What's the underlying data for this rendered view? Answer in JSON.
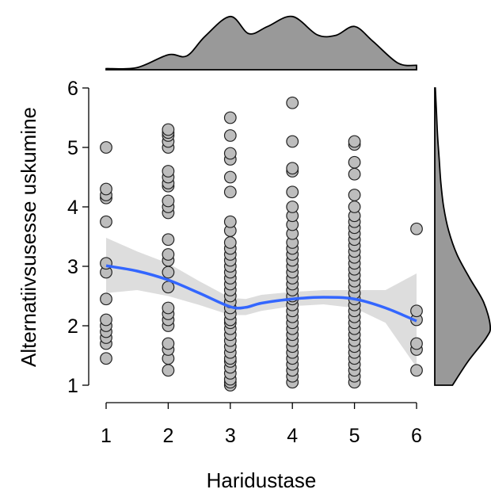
{
  "chart_data": {
    "type": "scatter",
    "title": "",
    "xlabel": "Haridustase",
    "ylabel": "Alternatiivsusesse uskumine",
    "xlim": [
      1,
      6
    ],
    "ylim": [
      1,
      6
    ],
    "xticks": [
      "1",
      "2",
      "3",
      "4",
      "5",
      "6"
    ],
    "yticks": [
      "1",
      "2",
      "3",
      "4",
      "5",
      "6"
    ],
    "grid": false,
    "marginal_top": "density of Haridustase",
    "marginal_right": "density of Alternatiivsusesse uskumine",
    "colors": {
      "points_fill": "#bdbdbd",
      "points_stroke": "#222222",
      "smooth_line": "#3366ff",
      "confidence_band": "#d9d9d9",
      "density_fill": "#999999"
    },
    "points": {
      "1": [
        1.45,
        1.7,
        1.8,
        1.9,
        2.0,
        2.1,
        2.45,
        2.9,
        3.05,
        3.75,
        4.15,
        4.2,
        4.3,
        5.0
      ],
      "2": [
        1.25,
        1.45,
        1.6,
        1.7,
        2.0,
        2.1,
        2.2,
        2.3,
        2.65,
        2.9,
        3.1,
        3.2,
        3.45,
        3.9,
        4.0,
        4.1,
        4.35,
        4.4,
        4.5,
        4.6,
        5.0,
        5.1,
        5.2,
        5.25,
        5.3
      ],
      "3": [
        1.0,
        1.05,
        1.1,
        1.2,
        1.3,
        1.4,
        1.45,
        1.55,
        1.65,
        1.75,
        1.85,
        1.95,
        2.05,
        2.1,
        2.2,
        2.3,
        2.4,
        2.5,
        2.6,
        2.7,
        2.8,
        2.9,
        3.0,
        3.1,
        3.2,
        3.3,
        3.4,
        3.6,
        3.75,
        4.25,
        4.5,
        4.8,
        4.9,
        5.2,
        5.5
      ],
      "4": [
        1.05,
        1.15,
        1.25,
        1.35,
        1.45,
        1.55,
        1.65,
        1.75,
        1.85,
        1.95,
        2.05,
        2.15,
        2.25,
        2.35,
        2.45,
        2.5,
        2.6,
        2.7,
        2.8,
        2.9,
        3.0,
        3.1,
        3.2,
        3.3,
        3.4,
        3.55,
        3.7,
        3.85,
        4.0,
        4.25,
        4.6,
        4.65,
        5.1,
        5.75
      ],
      "5": [
        1.05,
        1.15,
        1.25,
        1.35,
        1.45,
        1.55,
        1.65,
        1.75,
        1.85,
        1.95,
        2.05,
        2.15,
        2.25,
        2.35,
        2.45,
        2.55,
        2.65,
        2.75,
        2.85,
        2.95,
        3.05,
        3.15,
        3.25,
        3.35,
        3.45,
        3.55,
        3.65,
        3.75,
        3.85,
        4.0,
        4.2,
        4.55,
        4.75,
        5.05,
        5.1
      ],
      "6": [
        1.25,
        1.6,
        1.7,
        2.1,
        2.25,
        3.63
      ]
    },
    "smooth": {
      "x": [
        1.0,
        1.5,
        2.0,
        2.5,
        3.0,
        3.25,
        3.5,
        4.0,
        4.5,
        5.0,
        5.5,
        6.0
      ],
      "y": [
        3.01,
        2.92,
        2.77,
        2.55,
        2.32,
        2.31,
        2.38,
        2.45,
        2.48,
        2.45,
        2.3,
        2.08
      ],
      "lower": [
        2.55,
        2.6,
        2.5,
        2.35,
        2.18,
        2.18,
        2.25,
        2.33,
        2.36,
        2.3,
        2.05,
        1.3
      ],
      "upper": [
        3.48,
        3.25,
        3.05,
        2.75,
        2.47,
        2.45,
        2.52,
        2.57,
        2.6,
        2.6,
        2.6,
        2.88
      ]
    },
    "density_x": {
      "x": [
        1.0,
        1.5,
        2.0,
        2.3,
        2.6,
        3.0,
        3.3,
        3.6,
        4.0,
        4.4,
        4.7,
        5.0,
        5.3,
        5.7,
        6.0
      ],
      "d": [
        0.02,
        0.04,
        0.27,
        0.25,
        0.61,
        0.96,
        0.65,
        0.78,
        0.96,
        0.63,
        0.62,
        0.78,
        0.51,
        0.12,
        0.08
      ]
    },
    "density_y": {
      "y": [
        1.0,
        1.4,
        1.8,
        2.0,
        2.4,
        2.8,
        3.2,
        3.6,
        4.0,
        4.4,
        4.8,
        5.2,
        5.6,
        6.0
      ],
      "d": [
        0.32,
        0.6,
        0.93,
        1.0,
        0.88,
        0.63,
        0.4,
        0.25,
        0.16,
        0.11,
        0.08,
        0.05,
        0.03,
        0.01
      ]
    }
  }
}
